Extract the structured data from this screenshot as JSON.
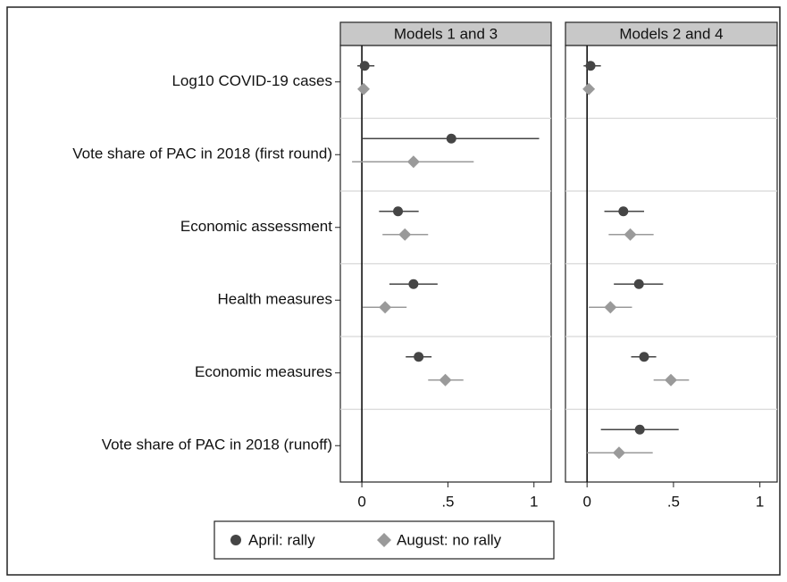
{
  "chart_data": {
    "type": "coefplot",
    "categories": [
      "Log10 COVID-19 cases",
      "Vote share of PAC in 2018 (first round)",
      "Economic assessment",
      "Health measures",
      "Economic measures",
      "Vote share of PAC in 2018 (runoff)"
    ],
    "series": [
      {
        "name": "April: rally",
        "color": "#454545",
        "marker": "circle"
      },
      {
        "name": "August: no rally",
        "color": "#9a9a9a",
        "marker": "diamond"
      }
    ],
    "xlim": [
      -0.125,
      1.1
    ],
    "xticks": [
      0,
      {
        "value": 0.5,
        "label": ".5"
      },
      1
    ],
    "panels": [
      {
        "title": "Models 1 and 3",
        "estimates": [
          {
            "values": [
              0.016,
              0.52,
              0.21,
              0.3,
              0.33,
              null
            ],
            "lower": [
              -0.026,
              0.005,
              0.1,
              0.16,
              0.255,
              null
            ],
            "upper": [
              0.073,
              1.03,
              0.33,
              0.44,
              0.405,
              null
            ]
          },
          {
            "values": [
              0.01,
              0.3,
              0.25,
              0.135,
              0.485,
              null
            ],
            "lower": [
              0.0,
              -0.057,
              0.12,
              0.005,
              0.385,
              null
            ],
            "upper": [
              0.02,
              0.65,
              0.385,
              0.26,
              0.59,
              null
            ]
          }
        ]
      },
      {
        "title": "Models 2 and 4",
        "estimates": [
          {
            "values": [
              0.02,
              null,
              0.21,
              0.3,
              0.33,
              0.305
            ],
            "lower": [
              -0.02,
              null,
              0.1,
              0.155,
              0.255,
              0.08
            ],
            "upper": [
              0.08,
              null,
              0.33,
              0.44,
              0.4,
              0.53
            ]
          },
          {
            "values": [
              0.01,
              null,
              0.25,
              0.135,
              0.485,
              0.185
            ],
            "lower": [
              0.0,
              null,
              0.125,
              0.01,
              0.385,
              0.0
            ],
            "upper": [
              0.02,
              null,
              0.385,
              0.26,
              0.59,
              0.38
            ]
          }
        ]
      }
    ]
  }
}
